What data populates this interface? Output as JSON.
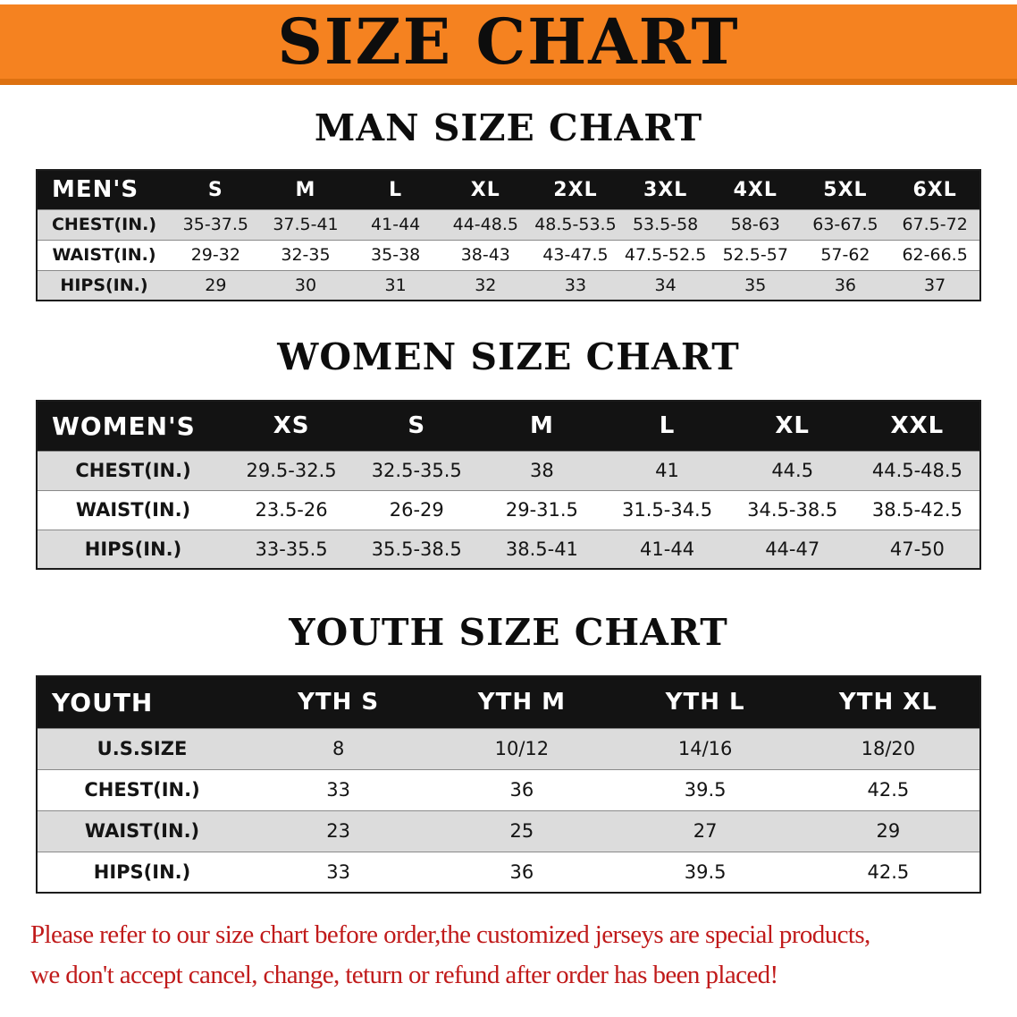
{
  "colors": {
    "banner-bg": "#F58220",
    "banner-stripe": "#DD7111",
    "header-bg": "#131313",
    "stripe-bg": "#DCDCDC",
    "accent-red": "#C01A1A",
    "text": "#111111"
  },
  "banner": {
    "title": "SIZE CHART"
  },
  "sections": [
    {
      "heading": "MAN SIZE CHART",
      "table": {
        "header": [
          "MEN'S",
          "S",
          "M",
          "L",
          "XL",
          "2XL",
          "3XL",
          "4XL",
          "5XL",
          "6XL"
        ],
        "rows": [
          {
            "label": "CHEST(IN.)",
            "values": [
              "35-37.5",
              "37.5-41",
              "41-44",
              "44-48.5",
              "48.5-53.5",
              "53.5-58",
              "58-63",
              "63-67.5",
              "67.5-72"
            ]
          },
          {
            "label": "WAIST(IN.)",
            "values": [
              "29-32",
              "32-35",
              "35-38",
              "38-43",
              "43-47.5",
              "47.5-52.5",
              "52.5-57",
              "57-62",
              "62-66.5"
            ]
          },
          {
            "label": "HIPS(IN.)",
            "values": [
              "29",
              "30",
              "31",
              "32",
              "33",
              "34",
              "35",
              "36",
              "37"
            ]
          }
        ]
      }
    },
    {
      "heading": "WOMEN SIZE CHART",
      "table": {
        "header": [
          "WOMEN'S",
          "XS",
          "S",
          "M",
          "L",
          "XL",
          "XXL"
        ],
        "rows": [
          {
            "label": "CHEST(IN.)",
            "values": [
              "29.5-32.5",
              "32.5-35.5",
              "38",
              "41",
              "44.5",
              "44.5-48.5"
            ]
          },
          {
            "label": "WAIST(IN.)",
            "values": [
              "23.5-26",
              "26-29",
              "29-31.5",
              "31.5-34.5",
              "34.5-38.5",
              "38.5-42.5"
            ]
          },
          {
            "label": "HIPS(IN.)",
            "values": [
              "33-35.5",
              "35.5-38.5",
              "38.5-41",
              "41-44",
              "44-47",
              "47-50"
            ]
          }
        ]
      }
    },
    {
      "heading": "YOUTH SIZE CHART",
      "table": {
        "header": [
          "YOUTH",
          "YTH S",
          "YTH M",
          "YTH L",
          "YTH XL"
        ],
        "rows": [
          {
            "label": "U.S.SIZE",
            "values": [
              "8",
              "10/12",
              "14/16",
              "18/20"
            ]
          },
          {
            "label": "CHEST(IN.)",
            "values": [
              "33",
              "36",
              "39.5",
              "42.5"
            ]
          },
          {
            "label": "WAIST(IN.)",
            "values": [
              "23",
              "25",
              "27",
              "29"
            ]
          },
          {
            "label": "HIPS(IN.)",
            "values": [
              "33",
              "36",
              "39.5",
              "42.5"
            ]
          }
        ]
      }
    }
  ],
  "footer": {
    "line1": "Please refer to our size chart before order,the customized jerseys are special products,",
    "line2": "we don't accept cancel, change, teturn or refund after order has been placed!"
  }
}
